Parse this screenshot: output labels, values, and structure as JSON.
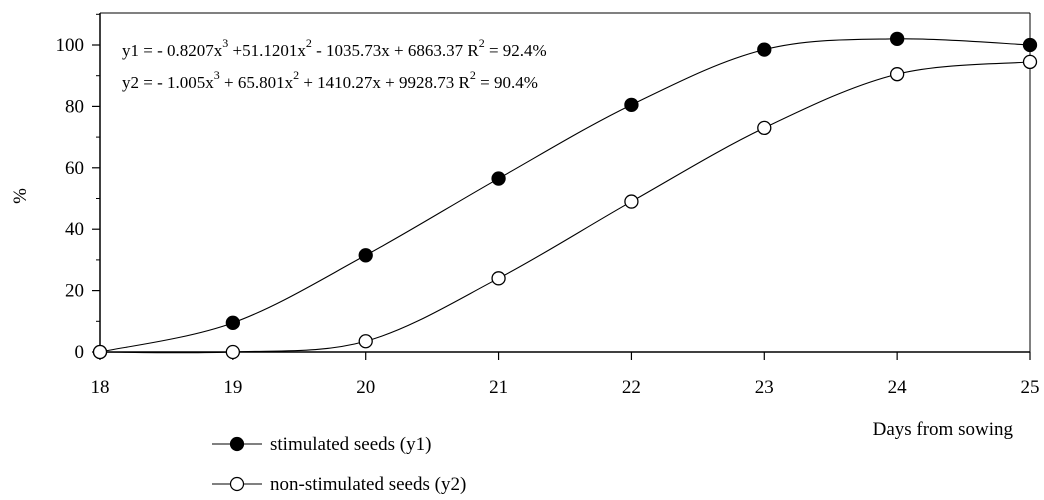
{
  "chart_data": {
    "type": "scatter",
    "xlabel": "Days from sowing",
    "ylabel": "%",
    "xlim": [
      18,
      25
    ],
    "ylim": [
      0,
      110
    ],
    "x_ticks": [
      "18",
      "19",
      "20",
      "21",
      "22",
      "23",
      "24",
      "25"
    ],
    "y_ticks": [
      "0",
      "20",
      "40",
      "60",
      "80",
      "100"
    ],
    "grid": false,
    "legend_position": "bottom-left",
    "series": [
      {
        "name": "stimulated seeds (y1)",
        "marker": "filled-circle",
        "color": "#000000",
        "x": [
          18,
          19,
          20,
          21,
          22,
          23,
          24,
          25
        ],
        "y": [
          0,
          9.5,
          31.5,
          56.5,
          80.5,
          98.5,
          102,
          100
        ],
        "equation": {
          "parts": [
            "y1 = - 0.8207x",
            "3",
            " +51.1201x",
            "2",
            " - 1035.73x + 6863.37  R",
            "2",
            " = 92.4%"
          ]
        }
      },
      {
        "name": "non-stimulated seeds (y2)",
        "marker": "open-circle",
        "color": "#000000",
        "x": [
          18,
          19,
          20,
          21,
          22,
          23,
          24,
          25
        ],
        "y": [
          0,
          0,
          3.5,
          24,
          49,
          73,
          90.5,
          94.5
        ],
        "equation": {
          "parts": [
            "y2 = - 1.005x",
            "3",
            " + 65.801x",
            "2",
            " + 1410.27x + 9928.73  R",
            "2",
            "  = 90.4%"
          ]
        }
      }
    ]
  }
}
